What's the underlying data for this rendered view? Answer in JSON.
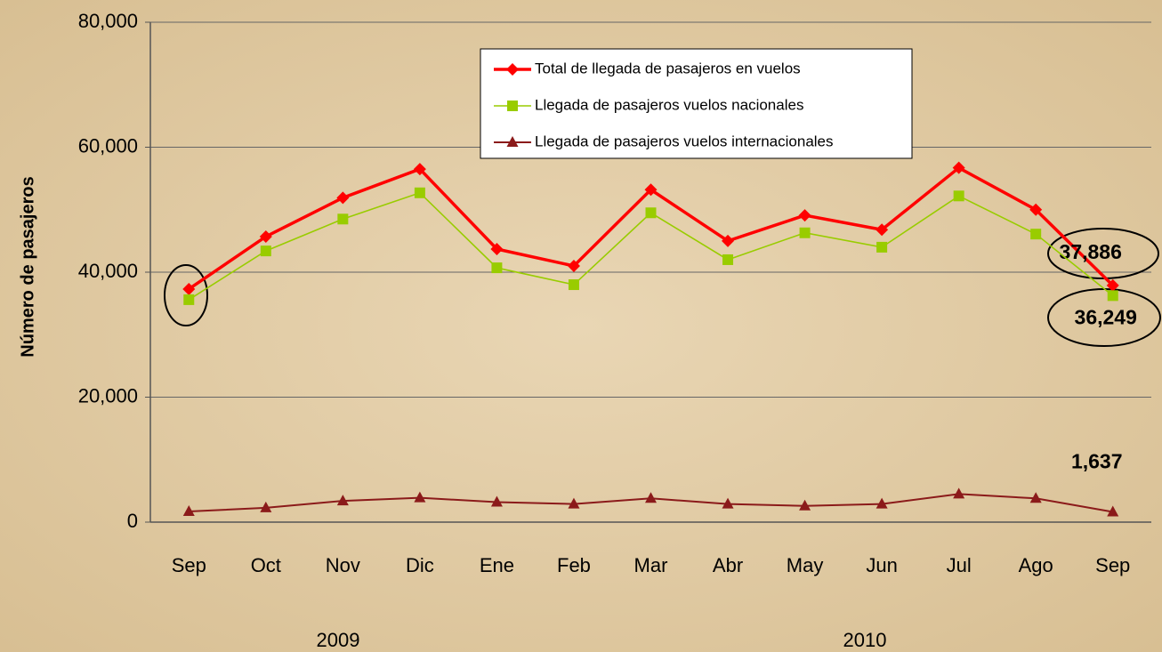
{
  "chart_data": {
    "type": "line",
    "y_label": "Número de pasajeros",
    "categories": [
      "Sep",
      "Oct",
      "Nov",
      "Dic",
      "Ene",
      "Feb",
      "Mar",
      "Abr",
      "May",
      "Jun",
      "Jul",
      "Ago",
      "Sep"
    ],
    "x_group_labels": [
      "2009",
      "2010"
    ],
    "series": [
      {
        "name": "Total de llegada de pasajeros en vuelos",
        "color": "#ff0000",
        "marker": "diamond",
        "values": [
          37300,
          45700,
          51900,
          56500,
          43700,
          41000,
          53200,
          45000,
          49100,
          46800,
          56700,
          50000,
          37886
        ],
        "value_labels": [
          null,
          null,
          null,
          null,
          null,
          null,
          null,
          null,
          null,
          null,
          null,
          null,
          "37,886"
        ]
      },
      {
        "name": "Llegada de pasajeros vuelos nacionales",
        "color": "#99cc00",
        "marker": "square",
        "values": [
          35600,
          43400,
          48500,
          52700,
          40700,
          38000,
          49500,
          42000,
          46300,
          44000,
          52200,
          46100,
          36249
        ],
        "value_labels": [
          null,
          null,
          null,
          null,
          null,
          null,
          null,
          null,
          null,
          null,
          null,
          null,
          "36,249"
        ]
      },
      {
        "name": "Llegada de pasajeros vuelos internacionales",
        "color": "#8b1a1a",
        "marker": "triangle",
        "values": [
          1700,
          2300,
          3400,
          3900,
          3200,
          2900,
          3800,
          2900,
          2600,
          2900,
          4500,
          3800,
          1637
        ],
        "value_labels": [
          null,
          null,
          null,
          null,
          null,
          null,
          null,
          null,
          null,
          null,
          null,
          null,
          "1,637"
        ]
      }
    ],
    "ylim": [
      0,
      80000
    ],
    "yticks": [
      0,
      {
        "value": 20000,
        "label": "20,000"
      },
      {
        "value": 40000,
        "label": "40,000"
      },
      {
        "value": 60000,
        "label": "60,000"
      },
      {
        "value": 80000,
        "label": "80,000"
      }
    ],
    "grid": true
  }
}
